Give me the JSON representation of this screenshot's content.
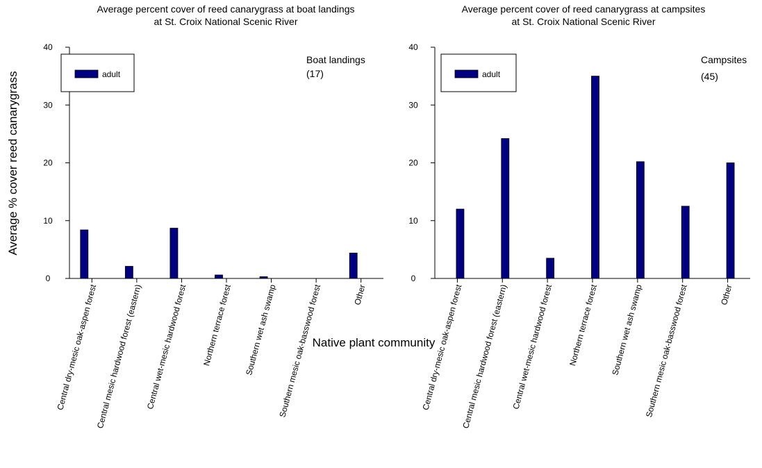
{
  "figure": {
    "shared_ylabel": "Average % cover reed canarygrass",
    "shared_xlabel": "Native plant community"
  },
  "chart_data": [
    {
      "type": "bar",
      "title": "Average percent cover of reed canarygrass at boat landings",
      "subtitle": "at St. Croix National Scenic River",
      "categories": [
        "Central dry-mesic oak-aspen forest",
        "Central mesic hardwood forest (eastern)",
        "Central wet-mesic hardwood forest",
        "Northern terrace forest",
        "Southern wet ash swamp",
        "Southern mesic oak-basswood forest",
        "Other"
      ],
      "series": [
        {
          "name": "adult",
          "values": [
            8.4,
            2.1,
            8.7,
            0.6,
            0.3,
            0,
            4.4
          ]
        }
      ],
      "ylim": [
        0,
        40
      ],
      "yticks": [
        "0",
        "10",
        "20",
        "30",
        "40"
      ],
      "annotation": [
        "Boat landings",
        "(17)"
      ],
      "legend_position": "top-left",
      "bar_color": "#000080",
      "grid": false
    },
    {
      "type": "bar",
      "title": "Average percent cover of reed canarygrass at campsites",
      "subtitle": "at St. Croix National Scenic River",
      "categories": [
        "Central dry-mesic oak-aspen forest",
        "Central mesic hardwood forest (eastern)",
        "Central wet-mesic hardwood forest",
        "Northern terrace forest",
        "Southern wet ash swamp",
        "Southern mesic oak-basswood forest",
        "Other"
      ],
      "series": [
        {
          "name": "adult",
          "values": [
            12,
            24.2,
            3.5,
            35,
            20.2,
            12.5,
            20
          ]
        }
      ],
      "ylim": [
        0,
        40
      ],
      "yticks": [
        "0",
        "10",
        "20",
        "30",
        "40"
      ],
      "annotation": [
        "Campsites",
        "(45)"
      ],
      "legend_position": "top-left",
      "bar_color": "#000080",
      "grid": false
    }
  ]
}
